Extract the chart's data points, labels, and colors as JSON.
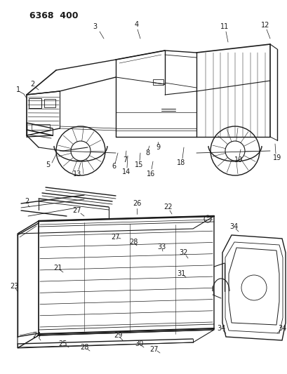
{
  "title": "6368  400",
  "bg_color": "#ffffff",
  "lc": "#1a1a1a",
  "fig_w": 4.1,
  "fig_h": 5.33,
  "dpi": 100
}
